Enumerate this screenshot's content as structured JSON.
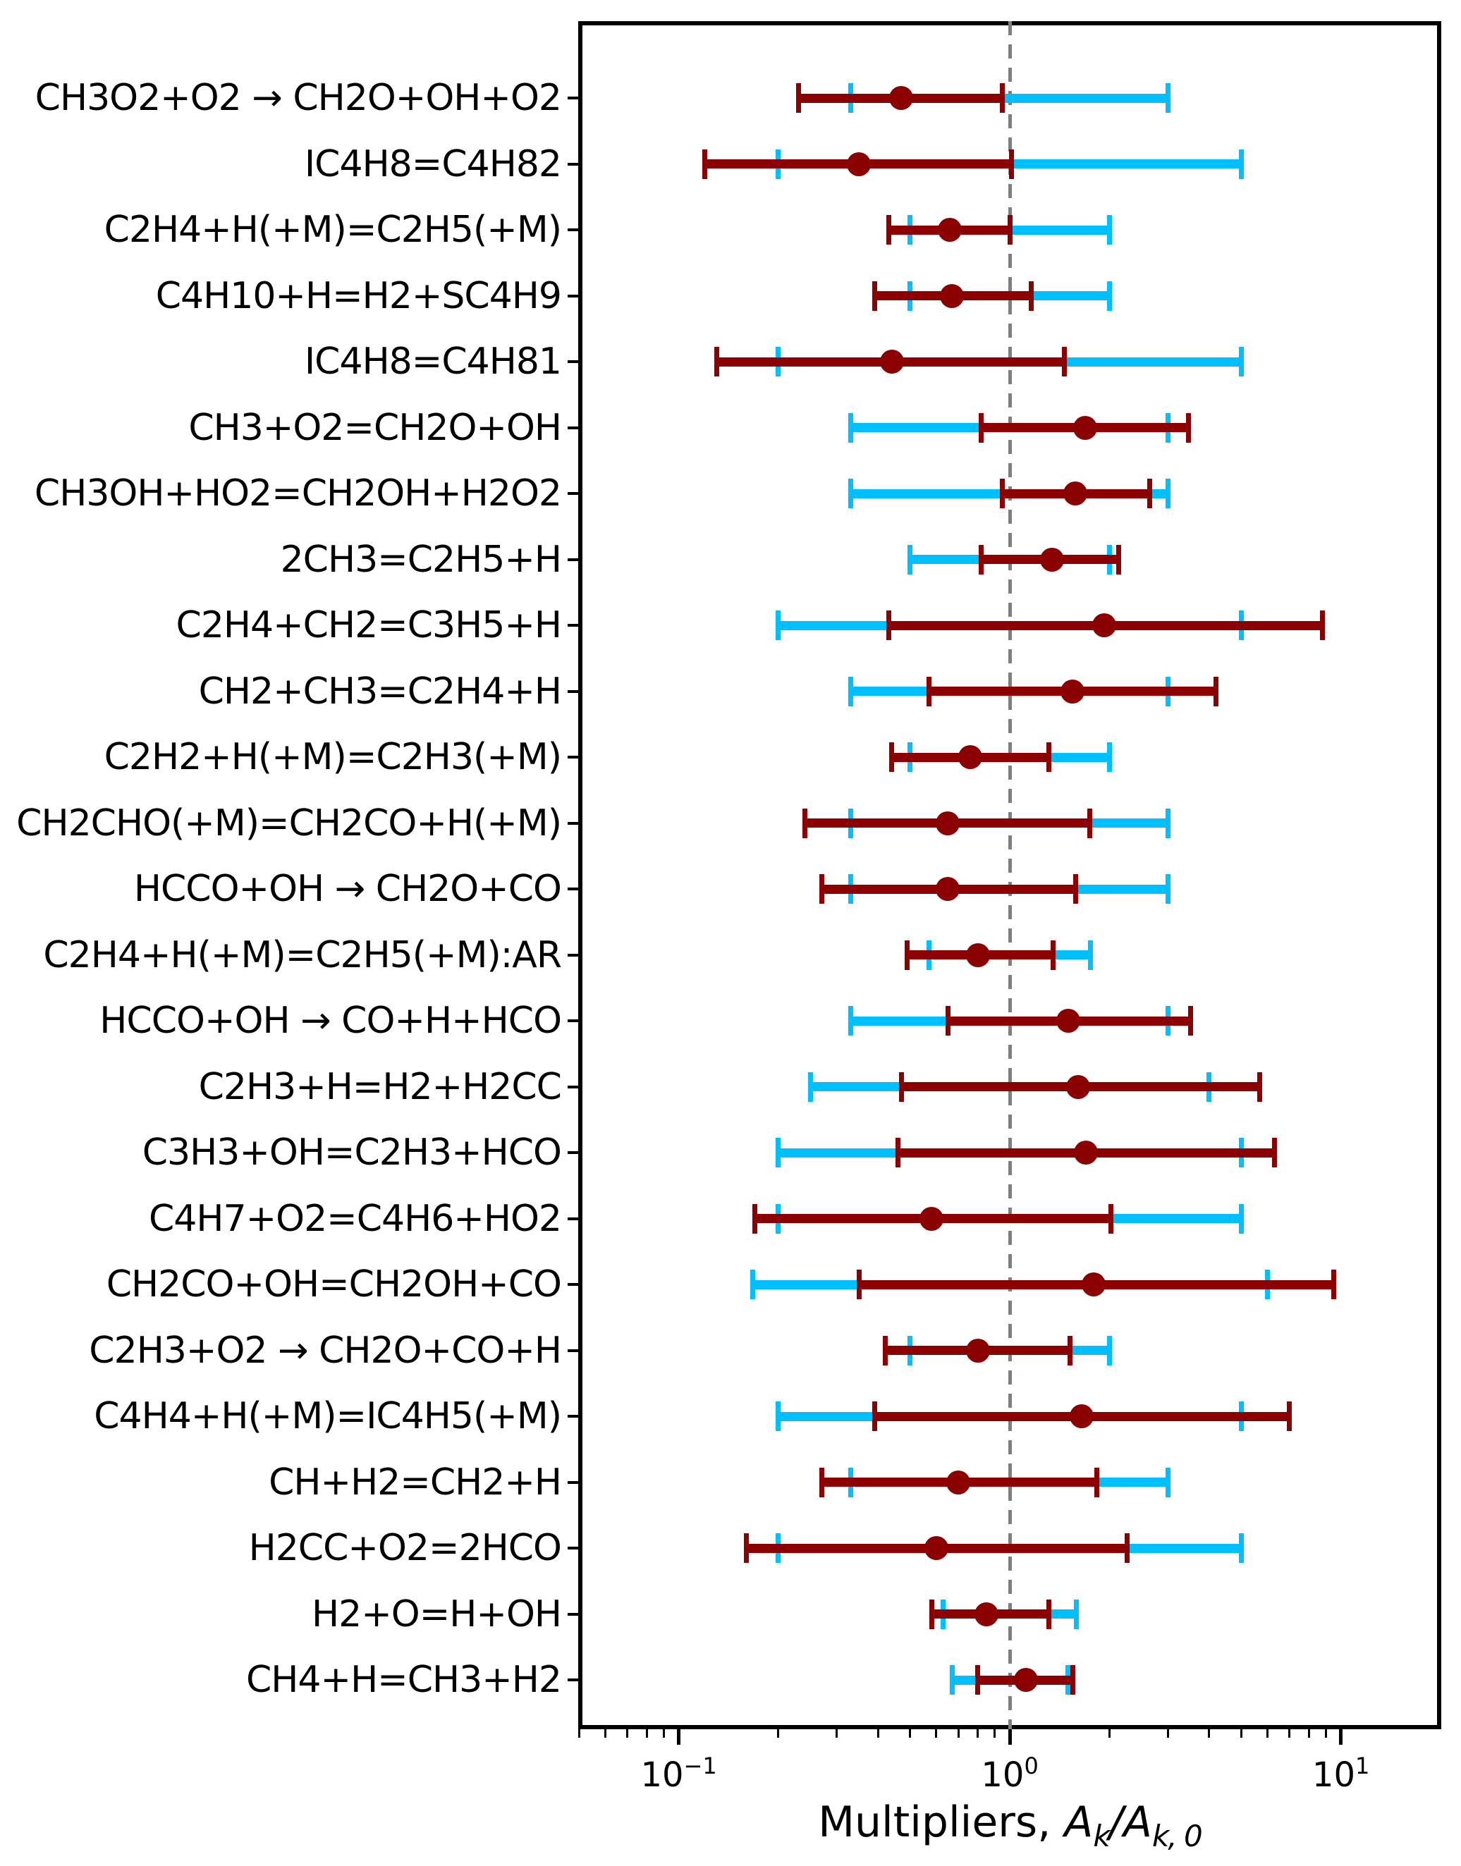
{
  "colors": {
    "posterior": "#8b0000",
    "prior": "#00bfff",
    "reference_line": "#7f7f7f",
    "axis": "#000000"
  },
  "x_axis": {
    "label_prefix": "Multipliers, ",
    "label_var1": "A",
    "label_sub1": "k",
    "label_slash": "/",
    "label_var2": "A",
    "label_sub2": "k, 0"
  },
  "chart_data": {
    "type": "errorbar-horizontal",
    "x_scale": "log",
    "xlim": [
      0.0497,
      20.1
    ],
    "grid": false,
    "legend": "none",
    "reference_line_x": 1.0,
    "x_major_ticks": [
      0.1,
      1,
      10
    ],
    "x_major_tick_labels": [
      {
        "base": "10",
        "exp": "−1"
      },
      {
        "base": "10",
        "exp": "0"
      },
      {
        "base": "10",
        "exp": "1"
      }
    ],
    "categories": [
      "CH3O2+O2 → CH2O+OH+O2",
      "IC4H8=C4H82",
      "C2H4+H(+M)=C2H5(+M)",
      "C4H10+H=H2+SC4H9",
      "IC4H8=C4H81",
      "CH3+O2=CH2O+OH",
      "CH3OH+HO2=CH2OH+H2O2",
      "2CH3=C2H5+H",
      "C2H4+CH2=C3H5+H",
      "CH2+CH3=C2H4+H",
      "C2H2+H(+M)=C2H3(+M)",
      "CH2CHO(+M)=CH2CO+H(+M)",
      "HCCO+OH → CH2O+CO",
      "C2H4+H(+M)=C2H5(+M):AR",
      "HCCO+OH → CO+H+HCO",
      "C2H3+H=H2+H2CC",
      "C3H3+OH=C2H3+HCO",
      "C4H7+O2=C4H6+HO2",
      "CH2CO+OH=CH2OH+CO",
      "C2H3+O2 → CH2O+CO+H",
      "C4H4+H(+M)=IC4H5(+M)",
      "CH+H2=CH2+H",
      "H2CC+O2=2HCO",
      "H2+O=H+OH",
      "CH4+H=CH3+H2"
    ],
    "series": [
      {
        "name": "prior-uncertainty",
        "color": "#00bfff",
        "ranges": [
          [
            0.33,
            3.0
          ],
          [
            0.2,
            5.0
          ],
          [
            0.5,
            2.0
          ],
          [
            0.5,
            2.0
          ],
          [
            0.2,
            5.0
          ],
          [
            0.33,
            3.0
          ],
          [
            0.33,
            3.0
          ],
          [
            0.5,
            2.0
          ],
          [
            0.2,
            5.0
          ],
          [
            0.33,
            3.0
          ],
          [
            0.5,
            2.0
          ],
          [
            0.33,
            3.0
          ],
          [
            0.33,
            3.0
          ],
          [
            0.57,
            1.75
          ],
          [
            0.33,
            3.0
          ],
          [
            0.25,
            4.0
          ],
          [
            0.2,
            5.0
          ],
          [
            0.2,
            5.0
          ],
          [
            0.167,
            6.0
          ],
          [
            0.5,
            2.0
          ],
          [
            0.2,
            5.0
          ],
          [
            0.33,
            3.0
          ],
          [
            0.2,
            5.0
          ],
          [
            0.63,
            1.59
          ],
          [
            0.67,
            1.5
          ]
        ]
      },
      {
        "name": "posterior-uncertainty",
        "color": "#8b0000",
        "ranges": [
          [
            0.23,
            0.95
          ],
          [
            0.12,
            1.01
          ],
          [
            0.43,
            1.0
          ],
          [
            0.39,
            1.16
          ],
          [
            0.13,
            1.46
          ],
          [
            0.82,
            3.47
          ],
          [
            0.95,
            2.64
          ],
          [
            0.82,
            2.13
          ],
          [
            0.43,
            8.8
          ],
          [
            0.57,
            4.19
          ],
          [
            0.44,
            1.31
          ],
          [
            0.24,
            1.74
          ],
          [
            0.27,
            1.58
          ],
          [
            0.49,
            1.35
          ],
          [
            0.65,
            3.51
          ],
          [
            0.47,
            5.68
          ],
          [
            0.46,
            6.3
          ],
          [
            0.17,
            2.02
          ],
          [
            0.35,
            9.5
          ],
          [
            0.42,
            1.52
          ],
          [
            0.39,
            7.0
          ],
          [
            0.27,
            1.83
          ],
          [
            0.16,
            2.26
          ],
          [
            0.58,
            1.31
          ],
          [
            0.8,
            1.55
          ]
        ],
        "centers": [
          0.47,
          0.35,
          0.66,
          0.67,
          0.44,
          1.69,
          1.58,
          1.34,
          1.93,
          1.55,
          0.76,
          0.65,
          0.65,
          0.8,
          1.5,
          1.61,
          1.7,
          0.58,
          1.79,
          0.8,
          1.65,
          0.7,
          0.6,
          0.85,
          1.12
        ]
      }
    ]
  }
}
